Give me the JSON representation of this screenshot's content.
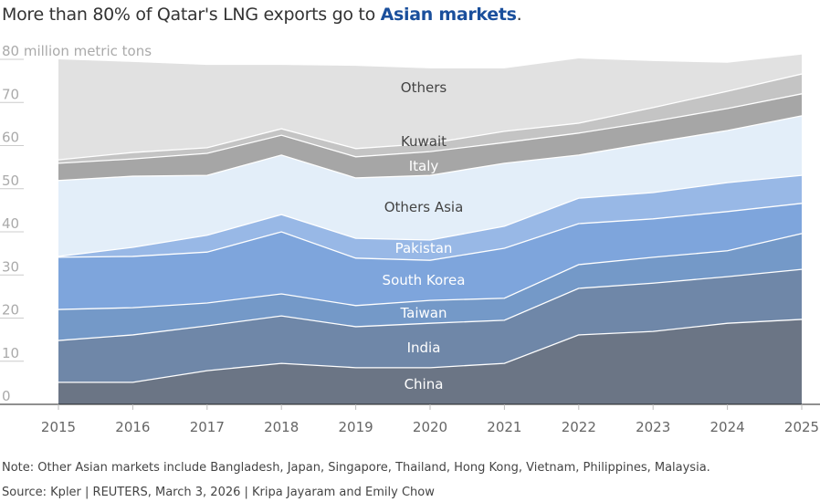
{
  "title": {
    "prefix": "More than 80% of Qatar's LNG exports go to ",
    "highlight": "Asian markets",
    "suffix": ".",
    "highlight_color": "#1a4f9c"
  },
  "chart_data": {
    "type": "area",
    "stacked": true,
    "ylabel": "million metric tons",
    "ylim": [
      0,
      80
    ],
    "yticks": [
      0,
      10,
      20,
      30,
      40,
      50,
      60,
      70,
      80
    ],
    "ytick_labels": [
      "0",
      "10",
      "20",
      "30",
      "40",
      "50",
      "60",
      "70",
      "80 million metric tons"
    ],
    "x": [
      "2015",
      "2016",
      "2017",
      "2018",
      "2019",
      "2020",
      "2021",
      "2022",
      "2023",
      "2024",
      "2025"
    ],
    "grid": false,
    "legend": "inline labels",
    "series": [
      {
        "name": "China",
        "color": "#6b7585",
        "values": [
          5.1,
          5.1,
          7.8,
          9.5,
          8.5,
          8.5,
          9.5,
          16.1,
          16.9,
          18.8,
          19.7
        ]
      },
      {
        "name": "India",
        "color": "#6f87a8",
        "values": [
          9.7,
          11.0,
          10.4,
          11.0,
          9.5,
          10.3,
          10.0,
          10.8,
          11.2,
          10.8,
          11.6
        ]
      },
      {
        "name": "Taiwan",
        "color": "#7499c8",
        "values": [
          7.2,
          6.3,
          5.3,
          5.1,
          4.9,
          5.3,
          5.1,
          5.5,
          6.0,
          6.0,
          8.3
        ]
      },
      {
        "name": "South Korea",
        "color": "#7ea5dc",
        "values": [
          12.1,
          11.9,
          11.8,
          14.4,
          11.0,
          9.3,
          11.6,
          9.5,
          8.9,
          9.1,
          7.0
        ]
      },
      {
        "name": "Pakistan",
        "color": "#98b8e6",
        "values": [
          0.2,
          2.1,
          3.9,
          4.0,
          4.6,
          4.7,
          5.1,
          5.9,
          6.1,
          6.7,
          6.5
        ]
      },
      {
        "name": "Others Asia",
        "color": "#e3eef9",
        "values": [
          17.6,
          16.5,
          13.9,
          13.8,
          14.0,
          15.0,
          14.6,
          10.0,
          11.6,
          12.1,
          13.8
        ]
      },
      {
        "name": "Italy",
        "color": "#a6a6a6",
        "values": [
          4.0,
          4.0,
          5.1,
          4.6,
          4.9,
          5.5,
          4.8,
          5.1,
          4.9,
          5.1,
          5.1
        ]
      },
      {
        "name": "Kuwait",
        "color": "#c4c4c4",
        "values": [
          0.8,
          1.5,
          1.3,
          1.5,
          1.9,
          1.9,
          2.6,
          2.3,
          3.2,
          4.0,
          4.6
        ]
      },
      {
        "name": "Others",
        "color": "#e1e1e1",
        "values": [
          23.3,
          21.0,
          19.2,
          14.8,
          19.2,
          17.4,
          14.6,
          15.0,
          10.8,
          6.6,
          4.5
        ]
      }
    ]
  },
  "footer": {
    "note": "Note: Other Asian markets include Bangladesh, Japan, Singapore, Thailand, Hong Kong, Vietnam, Philippines, Malaysia.",
    "source": "Source: Kpler | REUTERS, March 3, 2026 | Kripa Jayaram and Emily Chow"
  }
}
